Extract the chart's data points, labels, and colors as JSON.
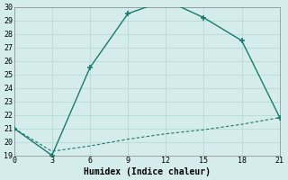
{
  "line1_x": [
    0,
    3,
    6,
    9,
    12,
    15,
    18,
    21
  ],
  "line1_y": [
    21.0,
    19.0,
    25.5,
    29.5,
    30.5,
    29.2,
    27.5,
    21.8
  ],
  "line2_x": [
    0,
    3,
    6,
    9,
    12,
    15,
    18,
    21
  ],
  "line2_y": [
    21.0,
    19.3,
    19.7,
    20.2,
    20.6,
    20.9,
    21.3,
    21.8
  ],
  "line_color": "#1a7a6e",
  "bg_color": "#d4ecec",
  "xlabel": "Humidex (Indice chaleur)",
  "xlim": [
    0,
    21
  ],
  "ylim": [
    19,
    30
  ],
  "xticks": [
    0,
    3,
    6,
    9,
    12,
    15,
    18,
    21
  ],
  "yticks": [
    19,
    20,
    21,
    22,
    23,
    24,
    25,
    26,
    27,
    28,
    29,
    30
  ],
  "grid_color": "#b8d8d8"
}
